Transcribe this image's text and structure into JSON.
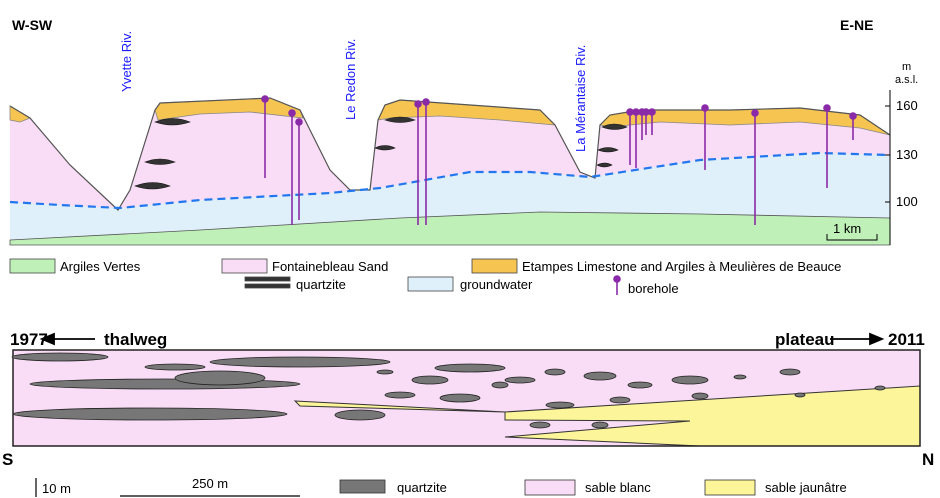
{
  "profile": {
    "direction_left": "W-SW",
    "direction_right": "E-NE",
    "rivers": [
      "Yvette Riv.",
      "Le Redon Riv.",
      "La Mérantaise Riv."
    ],
    "axis": {
      "unit": "m",
      "datum": "a.s.l.",
      "ticks": [
        160,
        130,
        100
      ]
    },
    "scale": "1 km"
  },
  "profile_legend": {
    "items": [
      "Argiles Vertes",
      "Fontainebleau Sand",
      "Etampes Limestone and Argiles à Meulières de Beauce",
      "quartzite",
      "groundwater",
      "borehole"
    ]
  },
  "section": {
    "start_year": "1977",
    "start_label": "thalweg",
    "end_label": "plateau",
    "end_year": "2011",
    "left_side": "S",
    "right_side": "N",
    "vertical_scale": "10 m",
    "horizontal_scale": "250 m",
    "legend": [
      "quartzite",
      "sable blanc",
      "sable jaunâtre"
    ]
  }
}
